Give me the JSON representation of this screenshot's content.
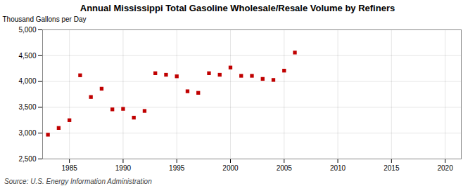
{
  "chart_data": {
    "type": "scatter",
    "title": "Annual Mississippi Total Gasoline Wholesale/Resale Volume by Refiners",
    "ylabel": "Thousand Gallons per Day",
    "source": "Source: U.S. Energy Information Administration",
    "x": [
      1983,
      1984,
      1985,
      1986,
      1987,
      1988,
      1989,
      1990,
      1991,
      1992,
      1993,
      1994,
      1995,
      1996,
      1997,
      1998,
      1999,
      2000,
      2001,
      2002,
      2003,
      2004,
      2005,
      2006
    ],
    "values": [
      2970,
      3100,
      3250,
      4120,
      3700,
      3860,
      3460,
      3470,
      3300,
      3430,
      4160,
      4130,
      4100,
      3810,
      3780,
      4160,
      4130,
      4270,
      4110,
      4110,
      4050,
      4030,
      4210,
      4560
    ],
    "color": "#c00000",
    "marker": "square",
    "xlim": [
      1982.5,
      2021.5
    ],
    "xticks": [
      1985,
      1990,
      1995,
      2000,
      2005,
      2010,
      2015,
      2020
    ],
    "ylim": [
      2500,
      5000
    ],
    "yticks": [
      {
        "value": 2500,
        "label": "2,500"
      },
      {
        "value": 3000,
        "label": "3,000"
      },
      {
        "value": 3500,
        "label": "3,500"
      },
      {
        "value": 4000,
        "label": "4,000"
      },
      {
        "value": 4500,
        "label": "4,500"
      },
      {
        "value": 5000,
        "label": "5,000"
      }
    ],
    "grid": true
  }
}
